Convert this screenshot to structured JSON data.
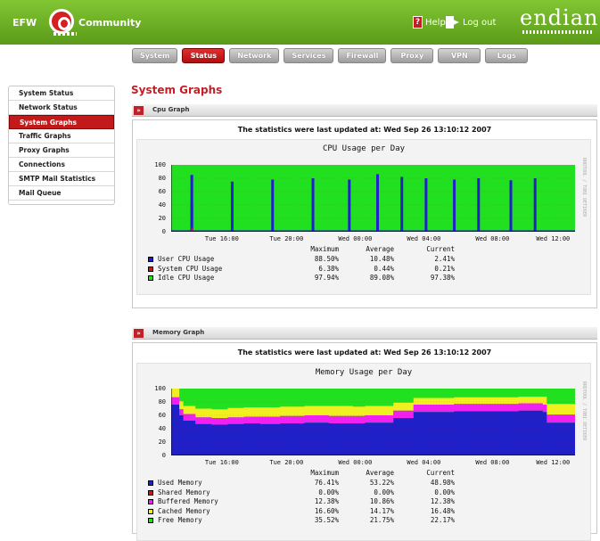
{
  "header": {
    "logo_left": "EFW",
    "logo_right": "Community",
    "help_label": "Help",
    "logout_label": "Log out",
    "brand": "endian",
    "colors": {
      "header_green": "#6eb026",
      "accent_red": "#c31f26"
    }
  },
  "tabs": [
    {
      "label": "System",
      "active": false
    },
    {
      "label": "Status",
      "active": true
    },
    {
      "label": "Network",
      "active": false
    },
    {
      "label": "Services",
      "active": false
    },
    {
      "label": "Firewall",
      "active": false
    },
    {
      "label": "Proxy",
      "active": false
    },
    {
      "label": "VPN",
      "active": false
    },
    {
      "label": "Logs",
      "active": false
    }
  ],
  "sidebar": {
    "items": [
      {
        "label": "System Status",
        "active": false
      },
      {
        "label": "Network Status",
        "active": false
      },
      {
        "label": "System Graphs",
        "active": true
      },
      {
        "label": "Traffic Graphs",
        "active": false
      },
      {
        "label": "Proxy Graphs",
        "active": false
      },
      {
        "label": "Connections",
        "active": false
      },
      {
        "label": "SMTP Mail Statistics",
        "active": false
      },
      {
        "label": "Mail Queue",
        "active": false
      }
    ]
  },
  "page": {
    "title": "System Graphs"
  },
  "cpu_section": {
    "heading": "Cpu Graph",
    "updated": "The statistics were last updated at: Wed Sep 26 13:10:12 2007"
  },
  "memory_section": {
    "heading": "Memory Graph",
    "updated": "The statistics were last updated at: Wed Sep 26 13:10:12 2007"
  },
  "chart_data": [
    {
      "type": "area",
      "title": "CPU Usage per Day",
      "side_caption": "RRDTOOL / TOBI OETIKER",
      "y_ticks": [
        "100",
        "80",
        "60",
        "40",
        "20",
        "0"
      ],
      "ylim": [
        0,
        100
      ],
      "x_ticks": [
        "Tue 16:00",
        "Tue 20:00",
        "Wed 00:00",
        "Wed 04:00",
        "Wed 08:00",
        "Wed 12:00"
      ],
      "grid": true,
      "stat_headers": [
        "Maximum",
        "Average",
        "Current"
      ],
      "series": [
        {
          "name": "User CPU Usage",
          "color": "#2020c8",
          "maximum": "88.50%",
          "average": "10.48%",
          "current": "2.41%",
          "baseline_pct": 2,
          "spikes": [
            {
              "t": 0.05,
              "v": 85
            },
            {
              "t": 0.05,
              "v": 45
            },
            {
              "t": 0.15,
              "v": 75
            },
            {
              "t": 0.25,
              "v": 78
            },
            {
              "t": 0.35,
              "v": 80
            },
            {
              "t": 0.44,
              "v": 78
            },
            {
              "t": 0.51,
              "v": 86
            },
            {
              "t": 0.57,
              "v": 82
            },
            {
              "t": 0.63,
              "v": 80
            },
            {
              "t": 0.7,
              "v": 78
            },
            {
              "t": 0.76,
              "v": 80
            },
            {
              "t": 0.84,
              "v": 77
            },
            {
              "t": 0.9,
              "v": 80
            }
          ]
        },
        {
          "name": "System CPU Usage",
          "color": "#c81818",
          "maximum": "6.38%",
          "average": "0.44%",
          "current": "0.21%"
        },
        {
          "name": "Idle CPU Usage",
          "color": "#20e020",
          "maximum": "97.94%",
          "average": "89.08%",
          "current": "97.38%"
        }
      ]
    },
    {
      "type": "area",
      "title": "Memory Usage per Day",
      "side_caption": "RRDTOOL / TOBI OETIKER",
      "y_ticks": [
        "100",
        "80",
        "60",
        "40",
        "20",
        "0"
      ],
      "ylim": [
        0,
        100
      ],
      "x_ticks": [
        "Tue 16:00",
        "Tue 20:00",
        "Wed 00:00",
        "Wed 04:00",
        "Wed 08:00",
        "Wed 12:00"
      ],
      "grid": true,
      "stat_headers": [
        "Maximum",
        "Average",
        "Current"
      ],
      "series": [
        {
          "name": "Used Memory",
          "color": "#2020c8",
          "maximum": "76.41%",
          "average": "53.22%",
          "current": "48.98%"
        },
        {
          "name": "Shared Memory",
          "color": "#c81818",
          "maximum": "0.00%",
          "average": "0.00%",
          "current": "0.00%"
        },
        {
          "name": "Buffered Memory",
          "color": "#f020f0",
          "maximum": "12.38%",
          "average": "10.86%",
          "current": "12.38%"
        },
        {
          "name": "Cached Memory",
          "color": "#f0f020",
          "maximum": "16.60%",
          "average": "14.17%",
          "current": "16.48%"
        },
        {
          "name": "Free Memory",
          "color": "#20e020",
          "maximum": "35.52%",
          "average": "21.75%",
          "current": "22.17%"
        }
      ],
      "profile": {
        "t": [
          0,
          0.02,
          0.03,
          0.06,
          0.1,
          0.14,
          0.18,
          0.22,
          0.27,
          0.33,
          0.39,
          0.45,
          0.48,
          0.5,
          0.55,
          0.6,
          0.64,
          0.7,
          0.78,
          0.86,
          0.92,
          0.93,
          1.0
        ],
        "used": [
          76,
          60,
          52,
          47,
          46,
          47,
          48,
          47,
          48,
          49,
          48,
          48,
          49,
          49,
          56,
          65,
          65,
          66,
          66,
          67,
          65,
          49,
          49
        ],
        "buffered": [
          11,
          9,
          10,
          10,
          10,
          10,
          10,
          11,
          11,
          11,
          11,
          11,
          11,
          11,
          11,
          11,
          11,
          11,
          11,
          11,
          11,
          12,
          12
        ],
        "cached": [
          13,
          12,
          12,
          13,
          13,
          14,
          14,
          14,
          14,
          14,
          15,
          14,
          14,
          14,
          12,
          10,
          10,
          10,
          10,
          10,
          12,
          16,
          16
        ]
      }
    }
  ]
}
